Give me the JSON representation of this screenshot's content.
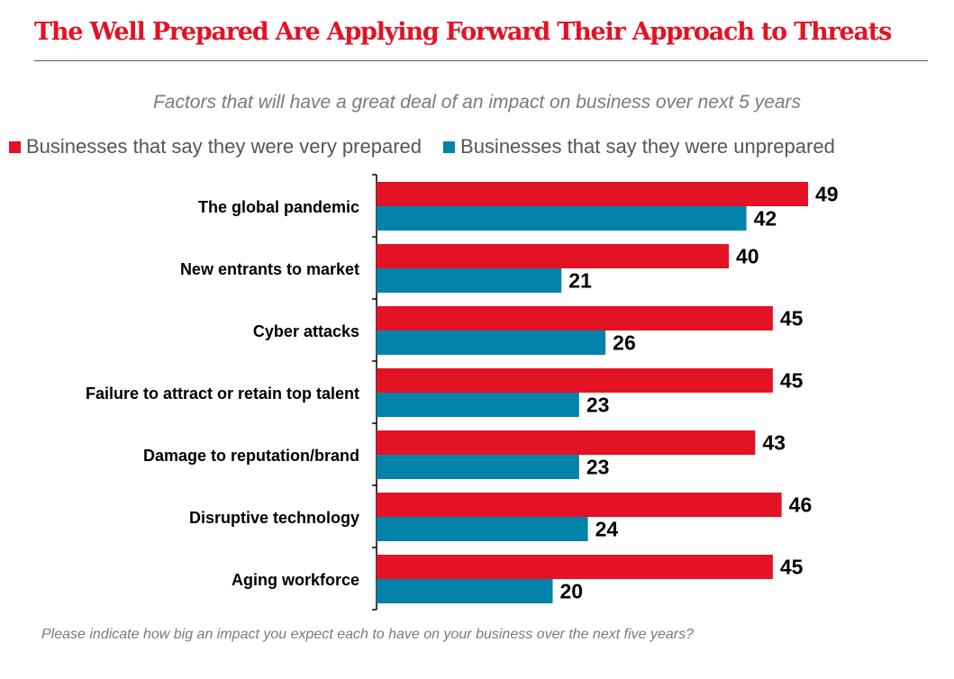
{
  "title": "The Well Prepared Are Applying Forward Their Approach to Threats",
  "colors": {
    "title": "#e31225",
    "prepared": "#e31225",
    "unprepared": "#0382aa",
    "text_muted": "#7a7a7a"
  },
  "footnote": "Please indicate how big an impact you expect each to have on your business over the next five years?",
  "chart_data": {
    "type": "bar",
    "orientation": "horizontal",
    "title": "The Well Prepared Are Applying Forward Their Approach to Threats",
    "subtitle": "Factors that will have a great deal of an impact on business over next 5 years",
    "xlabel": "",
    "ylabel": "",
    "xlim": [
      0,
      49
    ],
    "grid": false,
    "legend_position": "top",
    "categories": [
      "The global pandemic",
      "New entrants to market",
      "Cyber attacks",
      "Failure to attract or retain top talent",
      "Damage to reputation/brand",
      "Disruptive technology",
      "Aging workforce"
    ],
    "series": [
      {
        "name": "Businesses that say they were very prepared",
        "color": "#e31225",
        "values": [
          49,
          40,
          45,
          45,
          43,
          46,
          45
        ]
      },
      {
        "name": "Businesses that say they were unprepared",
        "color": "#0382aa",
        "values": [
          42,
          21,
          26,
          23,
          23,
          24,
          20
        ]
      }
    ]
  }
}
